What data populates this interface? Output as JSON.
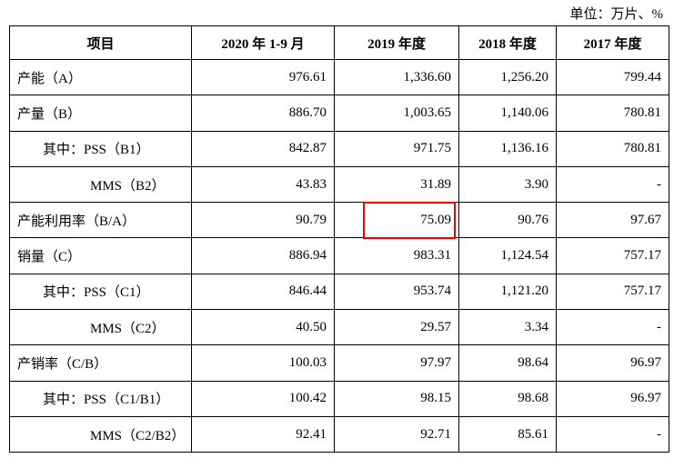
{
  "unit": "单位：万片、%",
  "table": {
    "header": [
      "项目",
      "2020 年 1-9 月",
      "2019 年度",
      "2018 年度",
      "2017 年度"
    ],
    "rows": [
      [
        "产能（A）",
        "976.61",
        "1,336.60",
        "1,256.20",
        "799.44"
      ],
      [
        "产量（B）",
        "886.70",
        "1,003.65",
        "1,140.06",
        "780.81"
      ],
      [
        "其中：PSS（B1）",
        "842.87",
        "971.75",
        "1,136.16",
        "780.81"
      ],
      [
        "MMS（B2）",
        "43.83",
        "31.89",
        "3.90",
        "-"
      ],
      [
        "产能利用率（B/A）",
        "90.79",
        "75.09",
        "90.76",
        "97.67"
      ],
      [
        "销量（C）",
        "886.94",
        "983.31",
        "1,124.54",
        "757.17"
      ],
      [
        "其中：PSS（C1）",
        "846.44",
        "953.74",
        "1,121.20",
        "757.17"
      ],
      [
        "MMS（C2）",
        "40.50",
        "29.57",
        "3.34",
        "-"
      ],
      [
        "产销率（C/B）",
        "100.03",
        "97.97",
        "98.64",
        "96.97"
      ],
      [
        "其中：PSS（C1/B1）",
        "100.42",
        "98.15",
        "98.68",
        "96.97"
      ],
      [
        "MMS（C2/B2）",
        "92.41",
        "92.71",
        "85.61",
        "-"
      ]
    ]
  }
}
